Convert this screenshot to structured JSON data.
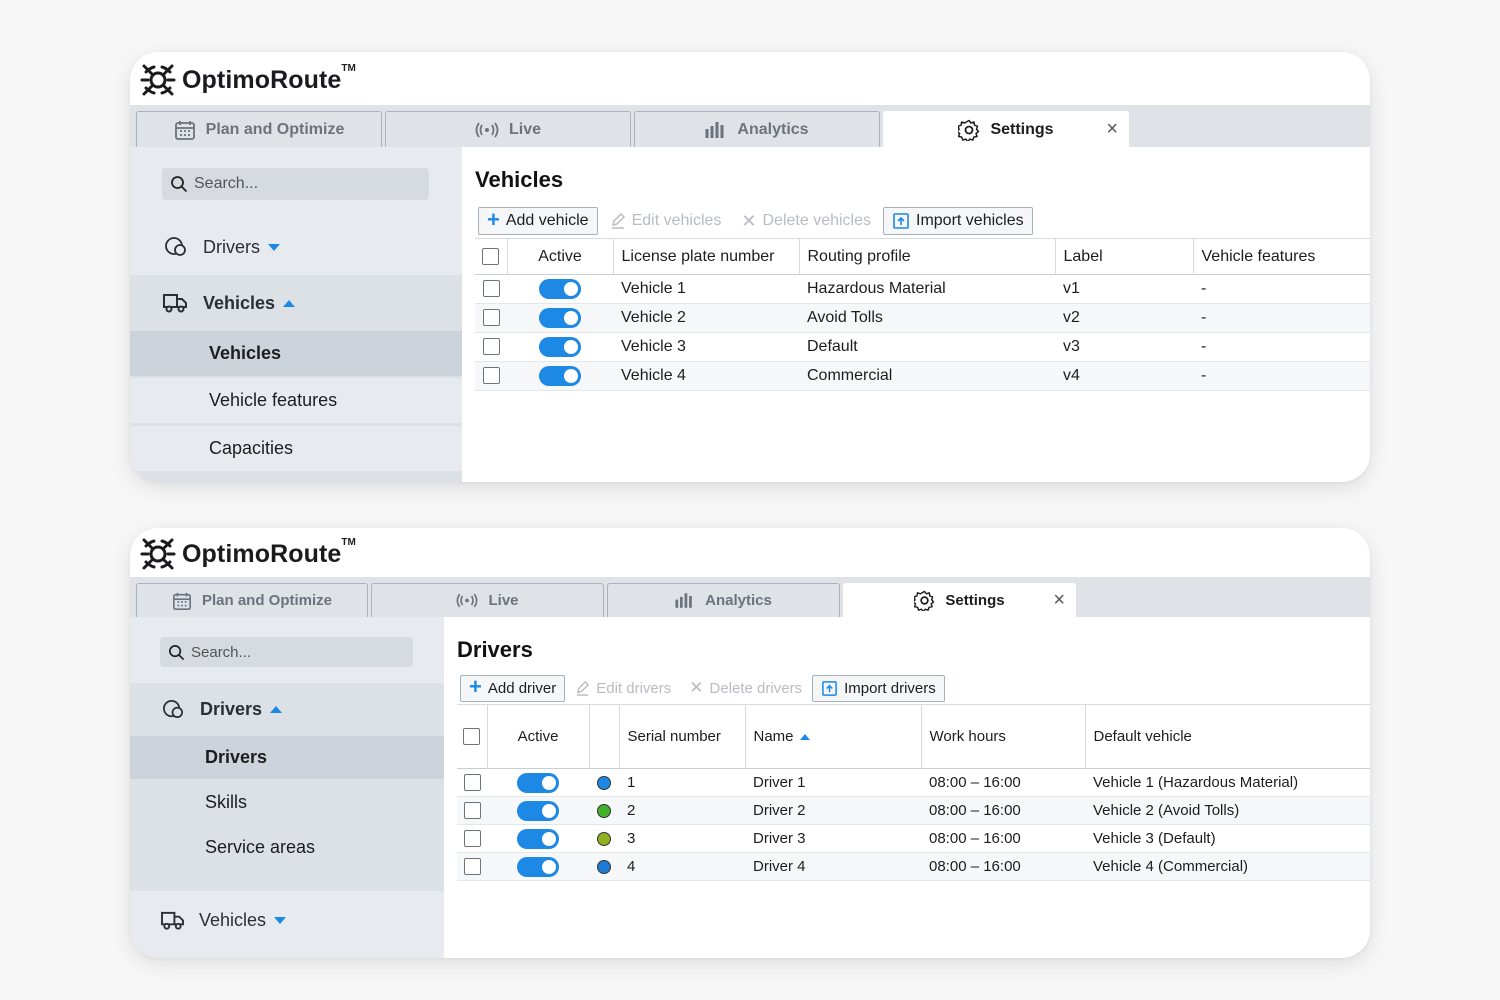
{
  "brand": {
    "name": "OptimoRoute",
    "tm": "TM"
  },
  "tabs": [
    {
      "label": "Plan and Optimize",
      "icon": "calendar-icon"
    },
    {
      "label": "Live",
      "icon": "broadcast-icon"
    },
    {
      "label": "Analytics",
      "icon": "bar-chart-icon"
    },
    {
      "label": "Settings",
      "icon": "gear-icon",
      "active": true,
      "close": "×"
    }
  ],
  "colors": {
    "accent": "#1e88e5",
    "sidebar": "#e7ebef",
    "tabbar": "#dfe3e8"
  },
  "vehicles_panel": {
    "search_placeholder": "Search...",
    "sidebar": {
      "drivers_label": "Drivers",
      "vehicles_label": "Vehicles",
      "sub_items": [
        "Vehicles",
        "Vehicle features",
        "Capacities"
      ]
    },
    "title": "Vehicles",
    "toolbar": {
      "add": "Add vehicle",
      "edit": "Edit vehicles",
      "delete": "Delete vehicles",
      "import": "Import vehicles"
    },
    "columns": [
      "Active",
      "License plate number",
      "Routing profile",
      "Label",
      "Vehicle features"
    ],
    "rows": [
      {
        "active": true,
        "plate": "Vehicle 1",
        "profile": "Hazardous Material",
        "label": "v1",
        "features": "-"
      },
      {
        "active": true,
        "plate": "Vehicle 2",
        "profile": "Avoid Tolls",
        "label": "v2",
        "features": "-"
      },
      {
        "active": true,
        "plate": "Vehicle 3",
        "profile": "Default",
        "label": "v3",
        "features": "-"
      },
      {
        "active": true,
        "plate": "Vehicle 4",
        "profile": "Commercial",
        "label": "v4",
        "features": "-"
      }
    ]
  },
  "drivers_panel": {
    "search_placeholder": "Search...",
    "sidebar": {
      "drivers_label": "Drivers",
      "sub_items": [
        "Drivers",
        "Skills",
        "Service areas"
      ],
      "vehicles_label": "Vehicles"
    },
    "title": "Drivers",
    "toolbar": {
      "add": "Add driver",
      "edit": "Edit drivers",
      "delete": "Delete drivers",
      "import": "Import drivers"
    },
    "columns": [
      "Active",
      "",
      "Serial number",
      "Name",
      "Work hours",
      "Default vehicle"
    ],
    "rows": [
      {
        "active": true,
        "color": "#1e88e5",
        "serial": "1",
        "name": "Driver 1",
        "hours": "08:00 – 16:00",
        "vehicle": "Vehicle 1 (Hazardous Material)"
      },
      {
        "active": true,
        "color": "#43b02a",
        "serial": "2",
        "name": "Driver 2",
        "hours": "08:00 – 16:00",
        "vehicle": "Vehicle 2 (Avoid Tolls)"
      },
      {
        "active": true,
        "color": "#8fb021",
        "serial": "3",
        "name": "Driver 3",
        "hours": "08:00 – 16:00",
        "vehicle": "Vehicle 3 (Default)"
      },
      {
        "active": true,
        "color": "#1e7bd6",
        "serial": "4",
        "name": "Driver 4",
        "hours": "08:00 – 16:00",
        "vehicle": "Vehicle 4 (Commercial)"
      }
    ]
  }
}
